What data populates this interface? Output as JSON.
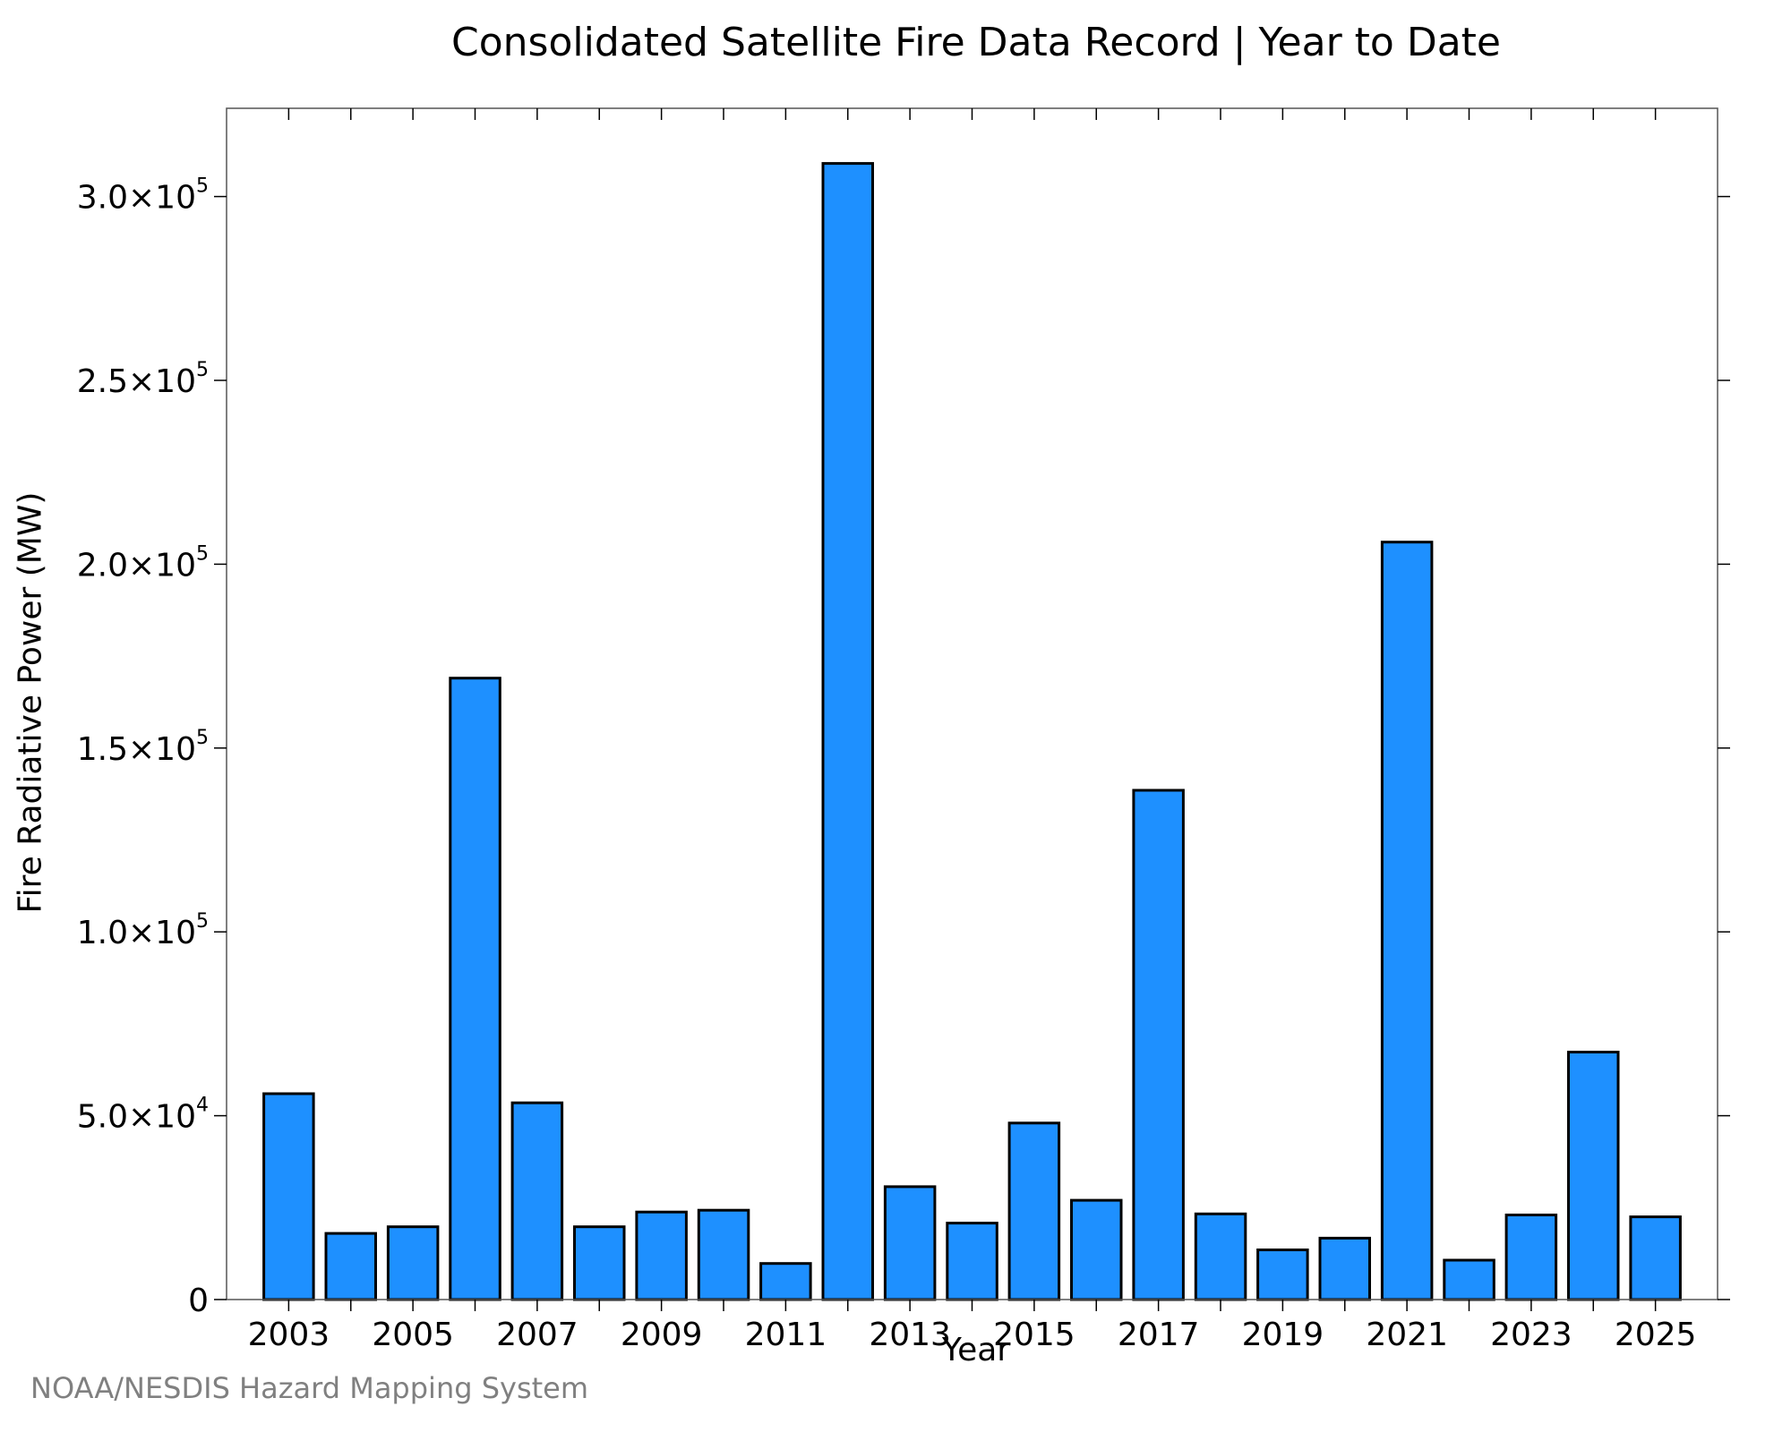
{
  "chart_data": {
    "type": "bar",
    "title": "Consolidated Satellite Fire Data Record | Year to Date",
    "xlabel": "Year",
    "ylabel": "Fire Radiative Power (MW)",
    "categories": [
      "2003",
      "2004",
      "2005",
      "2006",
      "2007",
      "2008",
      "2009",
      "2010",
      "2011",
      "2012",
      "2013",
      "2014",
      "2015",
      "2016",
      "2017",
      "2018",
      "2019",
      "2020",
      "2021",
      "2022",
      "2023",
      "2024",
      "2025"
    ],
    "values": [
      56000,
      18000,
      19800,
      169000,
      53500,
      19800,
      23800,
      24300,
      9800,
      309000,
      30700,
      20800,
      48000,
      27000,
      138500,
      23300,
      13500,
      16700,
      206000,
      10700,
      23000,
      67300,
      22500
    ],
    "x_tick_labels": [
      "2003",
      "2005",
      "2007",
      "2009",
      "2011",
      "2013",
      "2015",
      "2017",
      "2019",
      "2021",
      "2023",
      "2025"
    ],
    "y_ticks": [
      {
        "value": 0,
        "mantissa": "0",
        "exponent": ""
      },
      {
        "value": 50000,
        "mantissa": "5.0×10",
        "exponent": "4"
      },
      {
        "value": 100000,
        "mantissa": "1.0×10",
        "exponent": "5"
      },
      {
        "value": 150000,
        "mantissa": "1.5×10",
        "exponent": "5"
      },
      {
        "value": 200000,
        "mantissa": "2.0×10",
        "exponent": "5"
      },
      {
        "value": 250000,
        "mantissa": "2.5×10",
        "exponent": "5"
      },
      {
        "value": 300000,
        "mantissa": "3.0×10",
        "exponent": "5"
      }
    ],
    "ylim": [
      0,
      324000
    ],
    "grid": false,
    "bar_color": "#1e90ff",
    "bar_edge_color": "#000000"
  },
  "credit": "NOAA/NESDIS Hazard Mapping System"
}
